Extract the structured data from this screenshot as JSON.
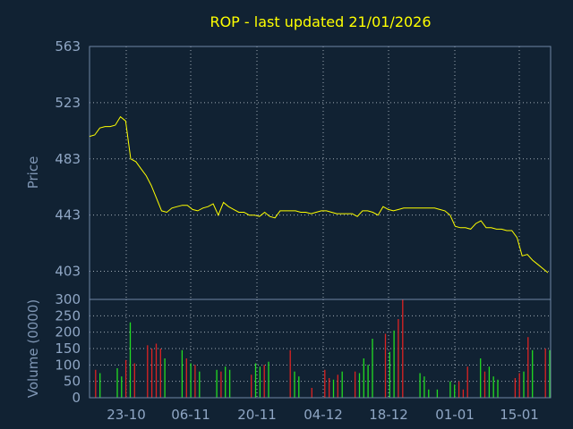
{
  "colors": {
    "background": "#112233",
    "title": "#ffff00",
    "price_line": "#ffff00",
    "volume_up": "#22dd22",
    "volume_down": "#dd2222",
    "tick_text": "#8fa6c4",
    "grid": "#d0d8e0"
  },
  "chart_data": [
    {
      "type": "line",
      "title": "ROP - last updated 21/01/2026",
      "xlabel": "",
      "ylabel": "Price",
      "ylim": [
        383,
        563
      ],
      "yticks": [
        "563",
        "523",
        "483",
        "443",
        "403"
      ],
      "grid": true,
      "series": [
        {
          "values": [
            499,
            500,
            505,
            506,
            506,
            507,
            513,
            510,
            483,
            481,
            476,
            471,
            464,
            455,
            446,
            445,
            448,
            449,
            450,
            450,
            447,
            446,
            448,
            449,
            451,
            443,
            452,
            449,
            447,
            445,
            445,
            443,
            443,
            442,
            445,
            442,
            441,
            446,
            446,
            446,
            446,
            445,
            445,
            444,
            445,
            446,
            446,
            445,
            444,
            444,
            444,
            444,
            442,
            446,
            446,
            445,
            443,
            449,
            447,
            446,
            447,
            448,
            448,
            448,
            448,
            448,
            448,
            448,
            447,
            446,
            443,
            435,
            434,
            434,
            433,
            437,
            439,
            434,
            434,
            433,
            433,
            432,
            432,
            427,
            414,
            415,
            411,
            408,
            405,
            402
          ]
        }
      ]
    },
    {
      "type": "bar",
      "xlabel": "",
      "ylabel": "Volume (0000)",
      "ylim": [
        0,
        300
      ],
      "yticks": [
        "300",
        "250",
        "200",
        "150",
        "100",
        "50",
        "0"
      ],
      "categories": [
        "23-10",
        "06-11",
        "20-11",
        "04-12",
        "18-12",
        "01-01",
        "15-01"
      ],
      "grid": true,
      "volumes": [
        0,
        85,
        75,
        0,
        0,
        0,
        90,
        65,
        115,
        230,
        105,
        0,
        0,
        160,
        150,
        165,
        150,
        120,
        0,
        0,
        0,
        145,
        120,
        105,
        100,
        80,
        0,
        0,
        0,
        85,
        80,
        95,
        85,
        0,
        0,
        0,
        0,
        70,
        105,
        95,
        100,
        110,
        0,
        0,
        0,
        0,
        145,
        80,
        65,
        0,
        0,
        30,
        0,
        0,
        85,
        60,
        55,
        70,
        80,
        0,
        0,
        80,
        75,
        120,
        100,
        180,
        0,
        0,
        195,
        140,
        205,
        240,
        300,
        0,
        0,
        0,
        75,
        65,
        25,
        0,
        25,
        0,
        0,
        50,
        40,
        50,
        25,
        95,
        0,
        0,
        120,
        80,
        95,
        65,
        55,
        0,
        0,
        0,
        60,
        75,
        80,
        185,
        145,
        0,
        0,
        150,
        145
      ],
      "up": [
        false,
        false,
        true,
        false,
        false,
        false,
        true,
        true,
        false,
        true,
        false,
        false,
        false,
        false,
        false,
        false,
        false,
        true,
        false,
        false,
        false,
        true,
        false,
        true,
        false,
        true,
        false,
        false,
        false,
        true,
        false,
        true,
        true,
        false,
        false,
        false,
        false,
        false,
        true,
        true,
        false,
        true,
        false,
        false,
        false,
        false,
        false,
        true,
        true,
        false,
        false,
        false,
        false,
        false,
        false,
        false,
        true,
        false,
        true,
        false,
        false,
        false,
        true,
        true,
        true,
        true,
        false,
        false,
        false,
        true,
        true,
        false,
        false,
        false,
        false,
        false,
        true,
        true,
        true,
        false,
        true,
        false,
        false,
        true,
        true,
        false,
        false,
        false,
        false,
        false,
        true,
        false,
        true,
        true,
        true,
        false,
        false,
        false,
        false,
        false,
        true,
        false,
        true,
        false,
        false,
        false,
        true
      ]
    }
  ]
}
